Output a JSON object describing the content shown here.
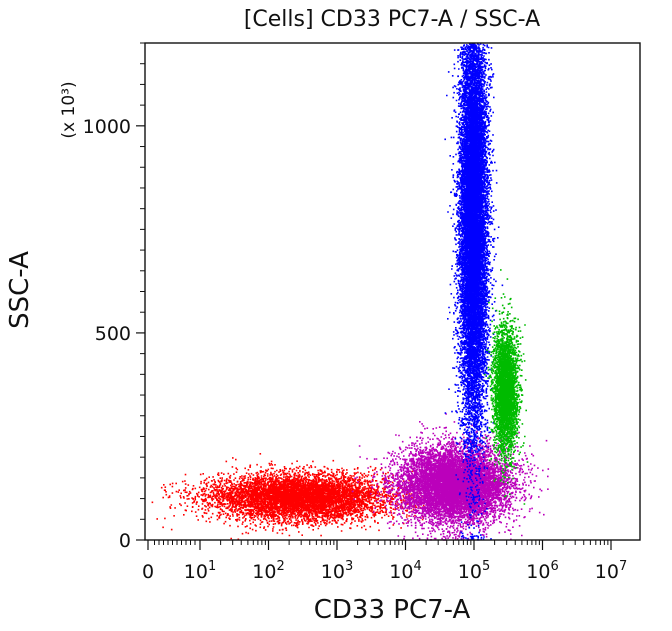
{
  "chart_data": {
    "type": "scatter",
    "title": "[Cells] CD33 PC7-A / SSC-A",
    "xlabel": "CD33 PC7-A",
    "ylabel": "SSC-A",
    "y_multiplier": "(x 10³)",
    "x_scale": "biexponential",
    "xlim": [
      0,
      10000000
    ],
    "ylim": [
      0,
      1200
    ],
    "x_ticks": [
      {
        "value": 0,
        "label": "0"
      },
      {
        "value": 10,
        "label": "10",
        "exp": "1"
      },
      {
        "value": 100,
        "label": "10",
        "exp": "2"
      },
      {
        "value": 1000,
        "label": "10",
        "exp": "3"
      },
      {
        "value": 10000,
        "label": "10",
        "exp": "4"
      },
      {
        "value": 100000,
        "label": "10",
        "exp": "5"
      },
      {
        "value": 1000000,
        "label": "10",
        "exp": "6"
      },
      {
        "value": 10000000,
        "label": "10",
        "exp": "7"
      }
    ],
    "y_ticks": [
      {
        "value": 0,
        "label": "0"
      },
      {
        "value": 500,
        "label": "500"
      },
      {
        "value": 1000,
        "label": "1000"
      }
    ],
    "grid": false,
    "populations": [
      {
        "color": "#ff0000",
        "events": 7000,
        "x_log10_center": 2.45,
        "x_log10_spread": 0.65,
        "y_center": 105,
        "y_spread": 28
      },
      {
        "color": "#bb00bb",
        "events": 9000,
        "x_log10_center": 4.7,
        "x_log10_spread": 0.4,
        "y_center": 135,
        "y_spread": 45
      },
      {
        "color": "#0000ff",
        "events": 16000,
        "x_log10_center": 4.98,
        "x_log10_spread": 0.1,
        "y_center": 780,
        "y_spread": 260
      },
      {
        "color": "#00bb00",
        "events": 3500,
        "x_log10_center": 5.45,
        "x_log10_spread": 0.09,
        "y_center": 360,
        "y_spread": 75
      }
    ]
  }
}
